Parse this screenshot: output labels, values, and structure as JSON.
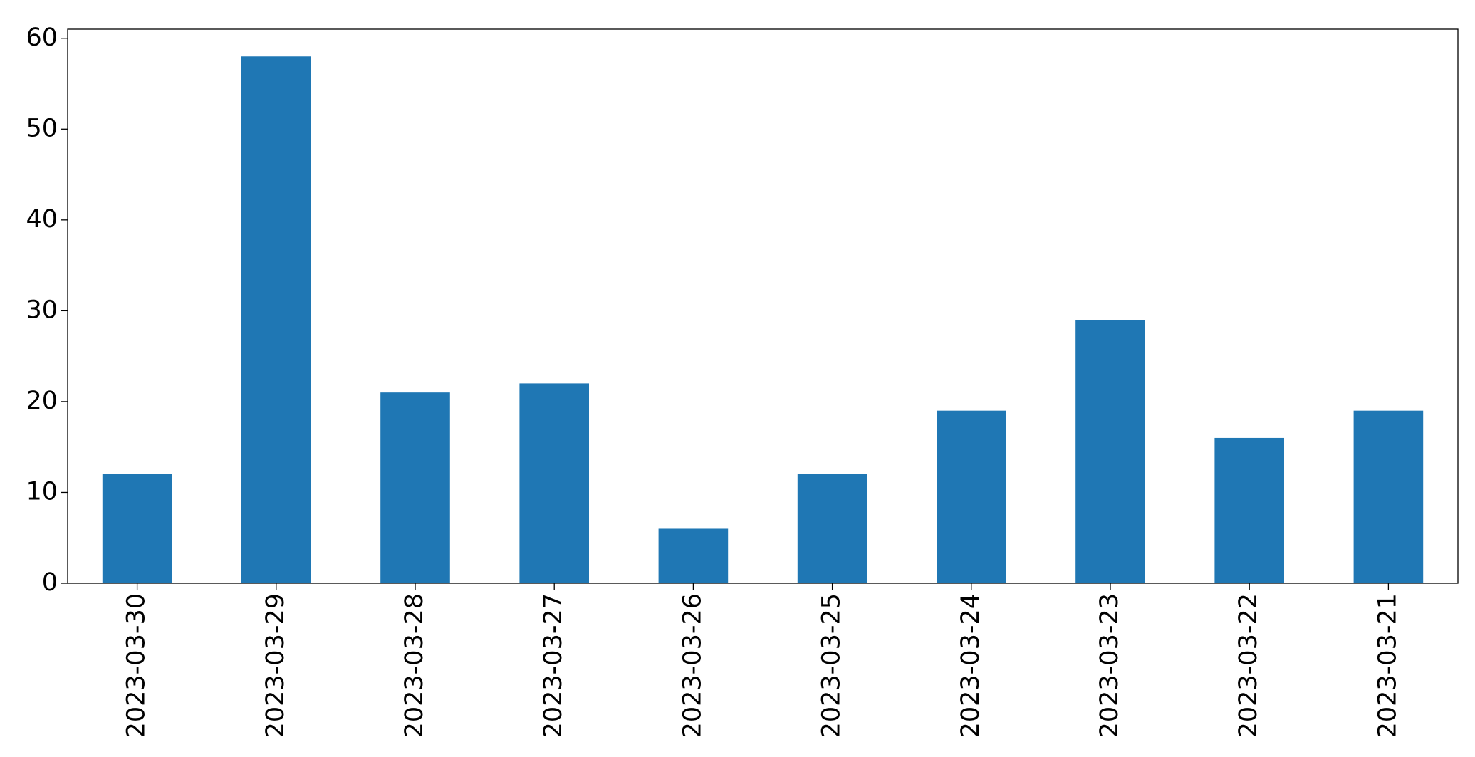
{
  "chart_data": {
    "type": "bar",
    "categories": [
      "2023-03-30",
      "2023-03-29",
      "2023-03-28",
      "2023-03-27",
      "2023-03-26",
      "2023-03-25",
      "2023-03-24",
      "2023-03-23",
      "2023-03-22",
      "2023-03-21"
    ],
    "values": [
      12,
      58,
      21,
      22,
      6,
      12,
      19,
      29,
      16,
      19
    ],
    "color": "#1f77b4",
    "ylim": [
      0,
      61
    ],
    "yticks": [
      0,
      10,
      20,
      30,
      40,
      50,
      60
    ],
    "grid": false
  }
}
